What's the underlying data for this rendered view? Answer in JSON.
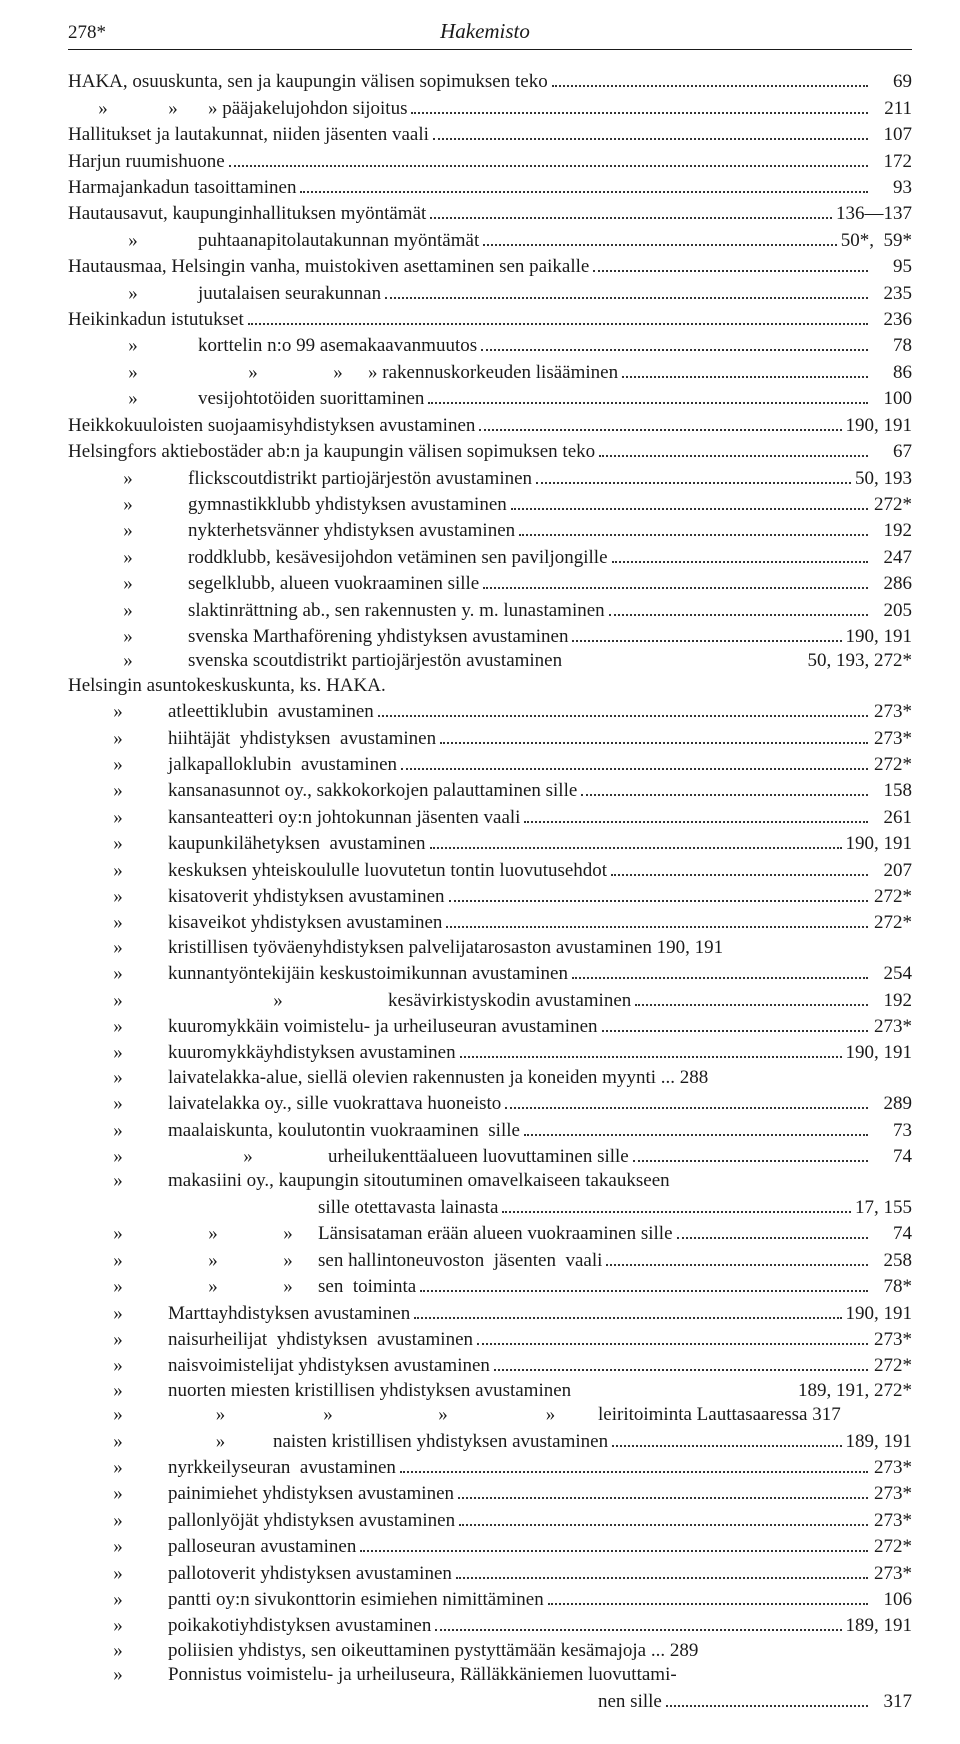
{
  "header": {
    "page_number": "278*",
    "title": "Hakemisto"
  },
  "ditto": "»",
  "entries": [
    {
      "text": "HAKA, osuuskunta, sen ja kaupungin välisen sopimuksen teko",
      "page": "69"
    },
    {
      "segments": [
        "»",
        "»",
        "» pääjakelujohdon sijoitus"
      ],
      "seg_widths": [
        70,
        70,
        0
      ],
      "page": "211"
    },
    {
      "text": "Hallitukset ja lautakunnat, niiden jäsenten vaali",
      "page": "107"
    },
    {
      "text": "Harjun ruumishuone",
      "page": "172"
    },
    {
      "text": "Harmajankadun tasoittaminen",
      "page": "93"
    },
    {
      "text": "Hautausavut, kaupunginhallituksen myöntämät",
      "page": "136—137"
    },
    {
      "segments": [
        "»",
        "puhtaanapitolautakunnan myöntämät"
      ],
      "seg_widths": [
        130,
        0
      ],
      "page": "50*,  59*"
    },
    {
      "text": "Hautausmaa, Helsingin vanha, muistokiven asettaminen sen paikalle",
      "page": "95"
    },
    {
      "segments": [
        "»",
        "juutalaisen seurakunnan"
      ],
      "seg_widths": [
        130,
        0
      ],
      "page": "235"
    },
    {
      "text": "Heikinkadun istutukset",
      "page": "236"
    },
    {
      "segments": [
        "»",
        "korttelin n:o 99 asemakaavanmuutos"
      ],
      "seg_widths": [
        130,
        0
      ],
      "page": "78"
    },
    {
      "segments": [
        "»",
        "»",
        "»",
        "» rakennuskorkeuden lisääminen"
      ],
      "seg_widths": [
        130,
        110,
        60,
        0
      ],
      "page": "86"
    },
    {
      "segments": [
        "»",
        "vesijohtotöiden suorittaminen"
      ],
      "seg_widths": [
        130,
        0
      ],
      "page": "100"
    },
    {
      "text": "Heikkokuuloisten suojaamisyhdistyksen avustaminen",
      "page": "190, 191"
    },
    {
      "text": "Helsingfors aktiebostäder ab:n ja kaupungin välisen sopimuksen teko",
      "page": "67"
    },
    {
      "segments": [
        "»",
        "flickscoutdistrikt partiojärjestön avustaminen"
      ],
      "seg_widths": [
        120,
        0
      ],
      "page": "50, 193"
    },
    {
      "segments": [
        "»",
        "gymnastikklubb yhdistyksen avustaminen"
      ],
      "seg_widths": [
        120,
        0
      ],
      "page": "272*"
    },
    {
      "segments": [
        "»",
        "nykterhetsvänner yhdistyksen avustaminen"
      ],
      "seg_widths": [
        120,
        0
      ],
      "page": "192"
    },
    {
      "segments": [
        "»",
        "roddklubb, kesävesijohdon vetäminen sen paviljongille"
      ],
      "seg_widths": [
        120,
        0
      ],
      "page": "247"
    },
    {
      "segments": [
        "»",
        "segelklubb, alueen vuokraaminen sille"
      ],
      "seg_widths": [
        120,
        0
      ],
      "page": "286"
    },
    {
      "segments": [
        "»",
        "slaktinrättning ab., sen rakennusten y. m. lunastaminen"
      ],
      "seg_widths": [
        120,
        0
      ],
      "page": "205"
    },
    {
      "segments": [
        "»",
        "svenska Marthaförening yhdistyksen avustaminen"
      ],
      "seg_widths": [
        120,
        0
      ],
      "page": "190, 191"
    },
    {
      "segments": [
        "»",
        "svenska scoutdistrikt partiojärjestön avustaminen"
      ],
      "seg_widths": [
        120,
        0
      ],
      "page": "50, 193, 272*",
      "no_leader": true
    },
    {
      "text": "Helsingin asuntokeskuskunta, ks. HAKA.",
      "no_leader": true,
      "page": ""
    },
    {
      "segments": [
        "»",
        "atleettiklubin  avustaminen"
      ],
      "seg_widths": [
        100,
        0
      ],
      "page": "273*"
    },
    {
      "segments": [
        "»",
        "hiihtäjät  yhdistyksen  avustaminen"
      ],
      "seg_widths": [
        100,
        0
      ],
      "page": "273*"
    },
    {
      "segments": [
        "»",
        "jalkapalloklubin  avustaminen"
      ],
      "seg_widths": [
        100,
        0
      ],
      "page": "272*"
    },
    {
      "segments": [
        "»",
        "kansanasunnot oy., sakkokorkojen palauttaminen sille"
      ],
      "seg_widths": [
        100,
        0
      ],
      "page": "158"
    },
    {
      "segments": [
        "»",
        "kansanteatteri oy:n johtokunnan jäsenten vaali"
      ],
      "seg_widths": [
        100,
        0
      ],
      "page": "261"
    },
    {
      "segments": [
        "»",
        "kaupunkilähetyksen  avustaminen"
      ],
      "seg_widths": [
        100,
        0
      ],
      "page": "190, 191"
    },
    {
      "segments": [
        "»",
        "keskuksen yhteiskoululle luovutetun tontin luovutusehdot"
      ],
      "seg_widths": [
        100,
        0
      ],
      "page": "207"
    },
    {
      "segments": [
        "»",
        "kisatoverit yhdistyksen avustaminen"
      ],
      "seg_widths": [
        100,
        0
      ],
      "page": "272*"
    },
    {
      "segments": [
        "»",
        "kisaveikot yhdistyksen avustaminen"
      ],
      "seg_widths": [
        100,
        0
      ],
      "page": "272*"
    },
    {
      "segments": [
        "»",
        "kristillisen työväenyhdistyksen palvelijatarosaston avustaminen 190, 191"
      ],
      "seg_widths": [
        100,
        0
      ],
      "no_leader": true,
      "page": ""
    },
    {
      "segments": [
        "»",
        "kunnantyöntekijäin keskustoimikunnan avustaminen"
      ],
      "seg_widths": [
        100,
        0
      ],
      "page": "254"
    },
    {
      "segments": [
        "»",
        "»",
        "kesävirkistyskodin avustaminen"
      ],
      "seg_widths": [
        100,
        220,
        0
      ],
      "page": "192"
    },
    {
      "segments": [
        "»",
        "kuuromykkäin voimistelu- ja urheiluseuran avustaminen"
      ],
      "seg_widths": [
        100,
        0
      ],
      "page": "273*"
    },
    {
      "segments": [
        "»",
        "kuuromykkäyhdistyksen avustaminen"
      ],
      "seg_widths": [
        100,
        0
      ],
      "page": "190, 191"
    },
    {
      "segments": [
        "»",
        "laivatelakka-alue, siellä olevien rakennusten ja koneiden myynti ... 288"
      ],
      "seg_widths": [
        100,
        0
      ],
      "no_leader": true,
      "page": ""
    },
    {
      "segments": [
        "»",
        "laivatelakka oy., sille vuokrattava huoneisto"
      ],
      "seg_widths": [
        100,
        0
      ],
      "page": "289"
    },
    {
      "segments": [
        "»",
        "maalaiskunta, koulutontin vuokraaminen  sille"
      ],
      "seg_widths": [
        100,
        0
      ],
      "page": "73"
    },
    {
      "segments": [
        "»",
        "»",
        "urheilukenttäalueen luovuttaminen sille"
      ],
      "seg_widths": [
        100,
        160,
        0
      ],
      "page": "74"
    },
    {
      "segments": [
        "»",
        "makasiini oy., kaupungin sitoutuminen omavelkaiseen takaukseen"
      ],
      "seg_widths": [
        100,
        0
      ],
      "no_leader": true,
      "page": ""
    },
    {
      "segments": [
        "",
        "sille otettavasta lainasta"
      ],
      "seg_widths": [
        250,
        0
      ],
      "page": "17, 155"
    },
    {
      "segments": [
        "»",
        "»",
        "»",
        "Länsisataman erään alueen vuokraaminen sille"
      ],
      "seg_widths": [
        100,
        90,
        60,
        0
      ],
      "page": "74"
    },
    {
      "segments": [
        "»",
        "»",
        "»",
        "sen hallintoneuvoston  jäsenten  vaali"
      ],
      "seg_widths": [
        100,
        90,
        60,
        0
      ],
      "page": "258"
    },
    {
      "segments": [
        "»",
        "»",
        "»",
        "sen  toiminta"
      ],
      "seg_widths": [
        100,
        90,
        60,
        0
      ],
      "page": "78*"
    },
    {
      "segments": [
        "»",
        "Marttayhdistyksen avustaminen"
      ],
      "seg_widths": [
        100,
        0
      ],
      "page": "190, 191"
    },
    {
      "segments": [
        "»",
        "naisurheilijat  yhdistyksen  avustaminen"
      ],
      "seg_widths": [
        100,
        0
      ],
      "page": "273*"
    },
    {
      "segments": [
        "»",
        "naisvoimistelijat yhdistyksen avustaminen"
      ],
      "seg_widths": [
        100,
        0
      ],
      "page": "272*"
    },
    {
      "segments": [
        "»",
        "nuorten miesten kristillisen yhdistyksen avustaminen"
      ],
      "seg_widths": [
        100,
        0
      ],
      "page": "189, 191, 272*",
      "no_leader": true
    },
    {
      "segments": [
        "»",
        "»",
        "»",
        "»",
        "»",
        "leiritoiminta Lauttasaaressa 317"
      ],
      "seg_widths": [
        100,
        105,
        110,
        120,
        95,
        0
      ],
      "no_leader": true,
      "page": ""
    },
    {
      "segments": [
        "»",
        "»",
        "naisten kristillisen yhdistyksen avustaminen"
      ],
      "seg_widths": [
        100,
        105,
        0
      ],
      "page": "189, 191"
    },
    {
      "segments": [
        "»",
        "nyrkkeilyseuran  avustaminen"
      ],
      "seg_widths": [
        100,
        0
      ],
      "page": "273*"
    },
    {
      "segments": [
        "»",
        "painimiehet yhdistyksen avustaminen"
      ],
      "seg_widths": [
        100,
        0
      ],
      "page": "273*"
    },
    {
      "segments": [
        "»",
        "pallonlyöjät yhdistyksen avustaminen"
      ],
      "seg_widths": [
        100,
        0
      ],
      "page": "273*"
    },
    {
      "segments": [
        "»",
        "palloseuran avustaminen"
      ],
      "seg_widths": [
        100,
        0
      ],
      "page": "272*"
    },
    {
      "segments": [
        "»",
        "pallotoverit yhdistyksen avustaminen"
      ],
      "seg_widths": [
        100,
        0
      ],
      "page": "273*"
    },
    {
      "segments": [
        "»",
        "pantti oy:n sivukonttorin esimiehen nimittäminen"
      ],
      "seg_widths": [
        100,
        0
      ],
      "page": "106"
    },
    {
      "segments": [
        "»",
        "poikakotiyhdistyksen avustaminen"
      ],
      "seg_widths": [
        100,
        0
      ],
      "page": "189, 191"
    },
    {
      "segments": [
        "»",
        "poliisien yhdistys, sen oikeuttaminen pystyttämään kesämajoja ... 289"
      ],
      "seg_widths": [
        100,
        0
      ],
      "no_leader": true,
      "page": ""
    },
    {
      "segments": [
        "»",
        "Ponnistus voimistelu- ja urheiluseura, Rälläkkäniemen luovuttami-"
      ],
      "seg_widths": [
        100,
        0
      ],
      "no_leader": true,
      "page": ""
    },
    {
      "segments": [
        "",
        "nen sille"
      ],
      "seg_widths": [
        530,
        0
      ],
      "page": "317"
    }
  ]
}
